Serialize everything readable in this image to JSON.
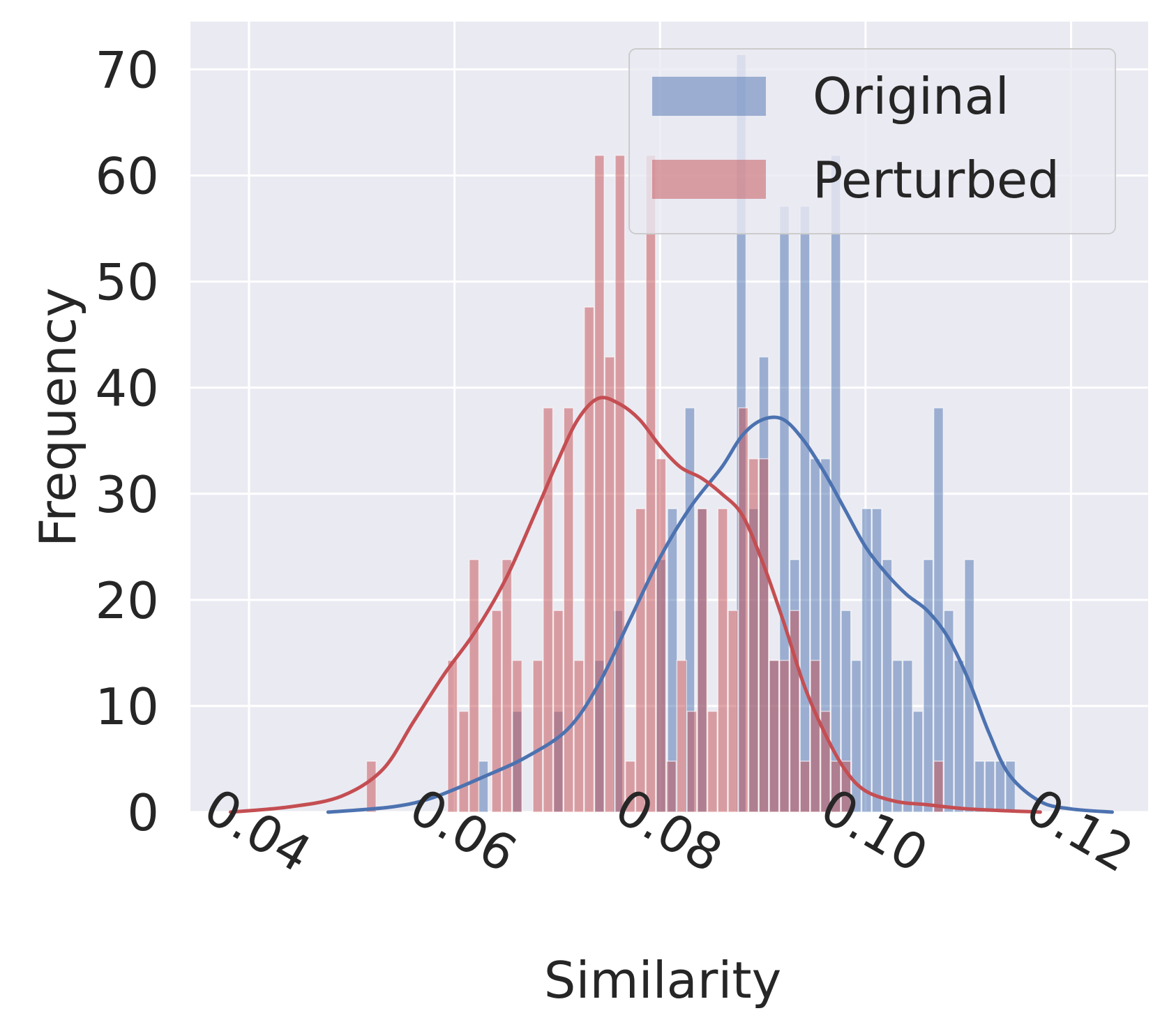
{
  "colors": {
    "background": "#ffffff",
    "plot_area": "#eaeaf2",
    "grid": "#ffffff",
    "original": "#4c72b0",
    "perturbed": "#c44e52",
    "text": "#262626"
  },
  "chart_data": {
    "type": "bar",
    "subtype": "histogram with kde overlay",
    "xlabel": "Similarity",
    "ylabel": "Frequency",
    "xlim": [
      0.0343,
      0.1275
    ],
    "ylim": [
      0,
      74.5
    ],
    "xticks": [
      0.04,
      0.06,
      0.08,
      0.1,
      0.12
    ],
    "xtick_labels": [
      "0.04",
      "0.06",
      "0.08",
      "0.10",
      "0.12"
    ],
    "yticks": [
      0,
      10,
      20,
      30,
      40,
      50,
      60,
      70
    ],
    "ytick_labels": [
      "0",
      "10",
      "20",
      "30",
      "40",
      "50",
      "60",
      "70"
    ],
    "grid": true,
    "legend_position": "top-right",
    "series": [
      {
        "name": "Original",
        "color": "#4c72b0",
        "bar_width": 0.00093,
        "bars": [
          [
            0.0628,
            4.8
          ],
          [
            0.0661,
            9.5
          ],
          [
            0.0701,
            9.5
          ],
          [
            0.0741,
            14.3
          ],
          [
            0.0759,
            19.0
          ],
          [
            0.0801,
            23.8
          ],
          [
            0.0812,
            28.6
          ],
          [
            0.0829,
            38.1
          ],
          [
            0.0841,
            28.6
          ],
          [
            0.0879,
            71.4
          ],
          [
            0.0891,
            28.6
          ],
          [
            0.0901,
            42.9
          ],
          [
            0.0911,
            14.3
          ],
          [
            0.0921,
            57.1
          ],
          [
            0.0931,
            23.8
          ],
          [
            0.0941,
            57.1
          ],
          [
            0.0951,
            33.3
          ],
          [
            0.0961,
            33.3
          ],
          [
            0.0971,
            61.9
          ],
          [
            0.0981,
            19.0
          ],
          [
            0.0991,
            14.3
          ],
          [
            0.1001,
            28.6
          ],
          [
            0.1011,
            28.6
          ],
          [
            0.1021,
            23.8
          ],
          [
            0.1031,
            14.3
          ],
          [
            0.1041,
            14.3
          ],
          [
            0.1051,
            9.5
          ],
          [
            0.1061,
            23.8
          ],
          [
            0.1071,
            38.1
          ],
          [
            0.1081,
            19.0
          ],
          [
            0.1091,
            14.3
          ],
          [
            0.1101,
            23.8
          ],
          [
            0.1111,
            4.8
          ],
          [
            0.1121,
            4.8
          ],
          [
            0.1131,
            4.8
          ],
          [
            0.1141,
            4.8
          ]
        ],
        "kde": [
          [
            0.0477,
            0.0
          ],
          [
            0.054,
            0.5
          ],
          [
            0.058,
            1.4
          ],
          [
            0.063,
            3.4
          ],
          [
            0.067,
            5.2
          ],
          [
            0.071,
            7.8
          ],
          [
            0.074,
            12.0
          ],
          [
            0.077,
            18.0
          ],
          [
            0.08,
            24.0
          ],
          [
            0.083,
            28.8
          ],
          [
            0.086,
            32.5
          ],
          [
            0.088,
            35.5
          ],
          [
            0.09,
            37.0
          ],
          [
            0.092,
            37.0
          ],
          [
            0.094,
            35.0
          ],
          [
            0.096,
            32.0
          ],
          [
            0.098,
            28.5
          ],
          [
            0.1,
            25.0
          ],
          [
            0.102,
            22.5
          ],
          [
            0.104,
            20.5
          ],
          [
            0.106,
            19.0
          ],
          [
            0.108,
            16.5
          ],
          [
            0.11,
            12.5
          ],
          [
            0.112,
            7.5
          ],
          [
            0.114,
            3.5
          ],
          [
            0.117,
            1.0
          ],
          [
            0.12,
            0.3
          ],
          [
            0.124,
            0.0
          ]
        ]
      },
      {
        "name": "Perturbed",
        "color": "#c44e52",
        "bar_width": 0.00093,
        "bars": [
          [
            0.0519,
            4.8
          ],
          [
            0.0598,
            14.3
          ],
          [
            0.0609,
            9.5
          ],
          [
            0.0619,
            23.8
          ],
          [
            0.0641,
            19.0
          ],
          [
            0.0651,
            23.8
          ],
          [
            0.0661,
            14.3
          ],
          [
            0.0681,
            14.3
          ],
          [
            0.0691,
            38.1
          ],
          [
            0.0701,
            19.0
          ],
          [
            0.0711,
            38.1
          ],
          [
            0.0721,
            14.3
          ],
          [
            0.0731,
            47.6
          ],
          [
            0.0741,
            61.9
          ],
          [
            0.0751,
            42.9
          ],
          [
            0.0761,
            61.9
          ],
          [
            0.0771,
            4.8
          ],
          [
            0.0781,
            28.6
          ],
          [
            0.0791,
            61.9
          ],
          [
            0.0801,
            33.3
          ],
          [
            0.0811,
            4.8
          ],
          [
            0.0821,
            14.3
          ],
          [
            0.0831,
            9.5
          ],
          [
            0.0841,
            28.6
          ],
          [
            0.0851,
            9.5
          ],
          [
            0.0861,
            28.6
          ],
          [
            0.0871,
            19.0
          ],
          [
            0.0881,
            38.1
          ],
          [
            0.0891,
            33.3
          ],
          [
            0.0901,
            33.3
          ],
          [
            0.0911,
            14.3
          ],
          [
            0.0921,
            14.3
          ],
          [
            0.0931,
            19.0
          ],
          [
            0.0941,
            4.8
          ],
          [
            0.0951,
            14.3
          ],
          [
            0.0961,
            9.5
          ],
          [
            0.0971,
            4.8
          ],
          [
            0.0981,
            4.8
          ],
          [
            0.1071,
            4.8
          ]
        ],
        "kde": [
          [
            0.0382,
            0.0
          ],
          [
            0.044,
            0.5
          ],
          [
            0.049,
            1.5
          ],
          [
            0.053,
            4.0
          ],
          [
            0.056,
            8.5
          ],
          [
            0.059,
            13.0
          ],
          [
            0.062,
            17.0
          ],
          [
            0.065,
            22.0
          ],
          [
            0.068,
            28.5
          ],
          [
            0.07,
            33.0
          ],
          [
            0.072,
            37.0
          ],
          [
            0.074,
            39.0
          ],
          [
            0.076,
            38.5
          ],
          [
            0.078,
            37.0
          ],
          [
            0.08,
            34.5
          ],
          [
            0.082,
            32.5
          ],
          [
            0.084,
            31.5
          ],
          [
            0.086,
            30.0
          ],
          [
            0.088,
            28.0
          ],
          [
            0.09,
            23.5
          ],
          [
            0.092,
            18.0
          ],
          [
            0.094,
            12.0
          ],
          [
            0.096,
            7.5
          ],
          [
            0.098,
            4.0
          ],
          [
            0.1,
            2.0
          ],
          [
            0.103,
            1.0
          ],
          [
            0.106,
            0.7
          ],
          [
            0.11,
            0.3
          ],
          [
            0.117,
            0.0
          ]
        ]
      }
    ]
  }
}
